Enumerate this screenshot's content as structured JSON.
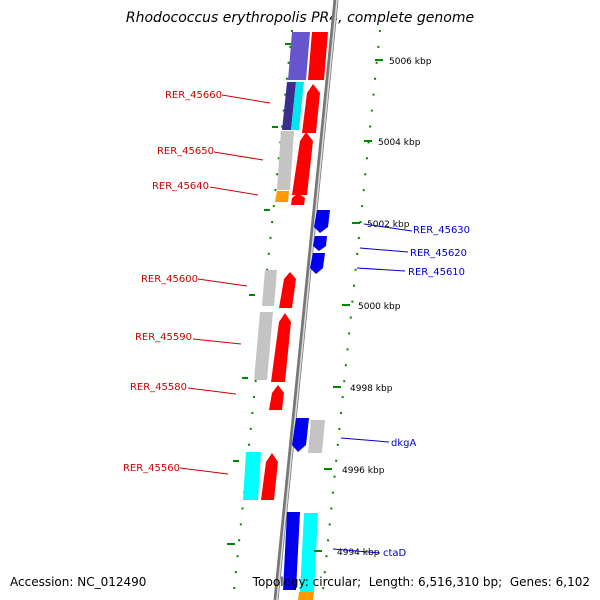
{
  "title": "Rhodococcus erythropolis PR4, complete genome",
  "footer": {
    "accession_label": "Accession:",
    "accession": "NC_012490",
    "topology_label": "Topology:",
    "topology": "circular",
    "length_label": "Length:",
    "length": "6,516,310 bp",
    "genes_label": "Genes:",
    "genes": "6,102"
  },
  "scale_labels": [
    "5006 kbp",
    "5004 kbp",
    "5002 kbp",
    "5000 kbp",
    "4998 kbp",
    "4996 kbp",
    "4994 kbp"
  ],
  "left_genes": [
    "RER_45660",
    "RER_45650",
    "RER_45640",
    "RER_45600",
    "RER_45590",
    "RER_45580",
    "RER_45560"
  ],
  "right_genes": [
    "RER_45630",
    "RER_45620",
    "RER_45610",
    "dkgA",
    "ctaD"
  ],
  "colors": {
    "forward_gene": "#ff0000",
    "reverse_gene": "#0000ee",
    "neutral": "#c0c0c0",
    "cyan": "#00ffff",
    "orange": "#ff9900",
    "purple": "#6655cc",
    "tick": "#008800",
    "left_label": "#cc0000",
    "right_label": "#0000cc"
  }
}
